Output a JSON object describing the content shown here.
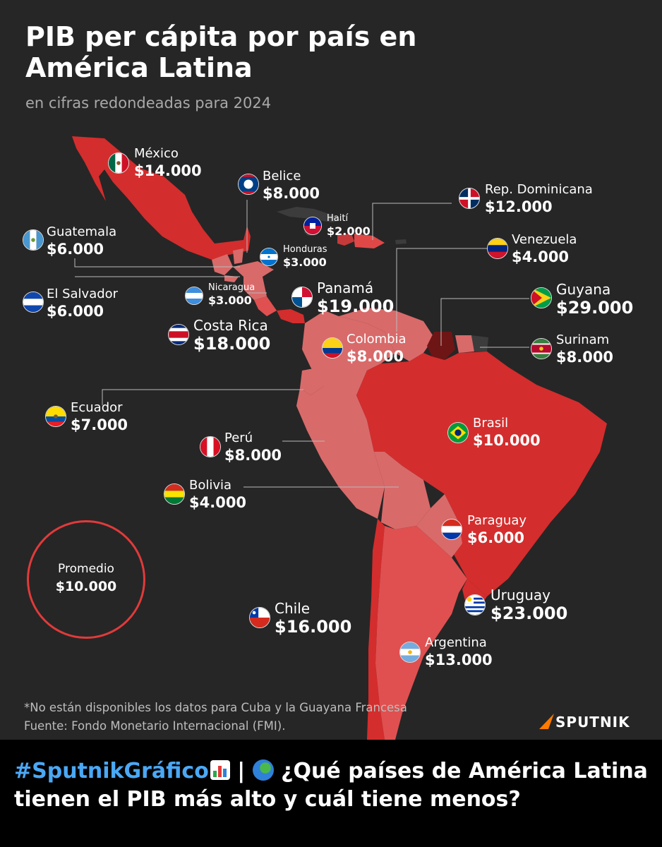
{
  "title": "PIB per cápita por país en América Latina",
  "subtitle": "en cifras redondeadas para 2024",
  "countries": [
    {
      "name": "México",
      "value": "$14.000",
      "flag": "mexico-flag"
    },
    {
      "name": "Belice",
      "value": "$8.000",
      "flag": "belize-flag"
    },
    {
      "name": "Rep. Dominicana",
      "value": "$12.000",
      "flag": "dominican-republic-flag"
    },
    {
      "name": "Haití",
      "value": "$2.000",
      "flag": "haiti-flag"
    },
    {
      "name": "Guatemala",
      "value": "$6.000",
      "flag": "guatemala-flag"
    },
    {
      "name": "Honduras",
      "value": "$3.000",
      "flag": "honduras-flag"
    },
    {
      "name": "Venezuela",
      "value": "$4.000",
      "flag": "venezuela-flag"
    },
    {
      "name": "El Salvador",
      "value": "$6.000",
      "flag": "el-salvador-flag"
    },
    {
      "name": "Nicaragua",
      "value": "$3.000",
      "flag": "nicaragua-flag"
    },
    {
      "name": "Panamá",
      "value": "$19.000",
      "flag": "panama-flag"
    },
    {
      "name": "Guyana",
      "value": "$29.000",
      "flag": "guyana-flag"
    },
    {
      "name": "Costa Rica",
      "value": "$18.000",
      "flag": "costa-rica-flag"
    },
    {
      "name": "Colombia",
      "value": "$8.000",
      "flag": "colombia-flag"
    },
    {
      "name": "Surinam",
      "value": "$8.000",
      "flag": "suriname-flag"
    },
    {
      "name": "Ecuador",
      "value": "$7.000",
      "flag": "ecuador-flag"
    },
    {
      "name": "Brasil",
      "value": "$10.000",
      "flag": "brazil-flag"
    },
    {
      "name": "Perú",
      "value": "$8.000",
      "flag": "peru-flag"
    },
    {
      "name": "Bolivia",
      "value": "$4.000",
      "flag": "bolivia-flag"
    },
    {
      "name": "Paraguay",
      "value": "$6.000",
      "flag": "paraguay-flag"
    },
    {
      "name": "Uruguay",
      "value": "$23.000",
      "flag": "uruguay-flag"
    },
    {
      "name": "Chile",
      "value": "$16.000",
      "flag": "chile-flag"
    },
    {
      "name": "Argentina",
      "value": "$13.000",
      "flag": "argentina-flag"
    }
  ],
  "average": {
    "label": "Promedio",
    "value": "$10.000"
  },
  "footnote": "*No están disponibles los datos para Cuba y la Guayana Francesa",
  "source": "Fuente: Fondo Monetario Internacional (FMI).",
  "brand": "SPUTNIK",
  "caption": {
    "hashtag": "#SputnikGráfico",
    "chart_icon": "bar-chart-emoji-icon",
    "separator": "|",
    "globe_icon": "globe-americas-emoji-icon",
    "text": "¿Qué países de América Latina tienen el PIB más alto y cuál tiene menos?"
  },
  "colors": {
    "background": "#262626",
    "highest": "#6e1515",
    "high": "#d42d2d",
    "medium": "#e05050",
    "low": "#d96a6a",
    "no_data": "#3c3c3c",
    "accent": "#e23a3a"
  }
}
